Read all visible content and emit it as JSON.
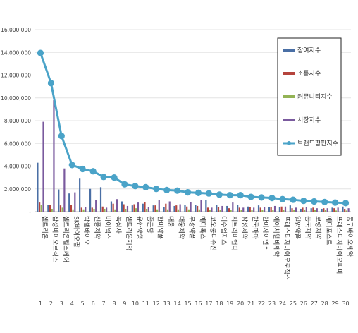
{
  "chart_data": {
    "type": "bar",
    "title": "",
    "xlabel": "",
    "ylabel": "",
    "ylim": [
      0,
      16000000
    ],
    "yticks": [
      0,
      2000000,
      4000000,
      6000000,
      8000000,
      10000000,
      12000000,
      14000000,
      16000000
    ],
    "ytick_labels": [
      "-",
      "2,000,000",
      "4,000,000",
      "6,000,000",
      "8,000,000",
      "10,000,000",
      "12,000,000",
      "14,000,000",
      "16,000,000"
    ],
    "grid": true,
    "legend_position": "right",
    "rank_labels": [
      "1",
      "2",
      "3",
      "4",
      "5",
      "6",
      "7",
      "8",
      "9",
      "10",
      "11",
      "12",
      "13",
      "14",
      "15",
      "16",
      "17",
      "18",
      "19",
      "20",
      "21",
      "22",
      "23",
      "24",
      "25",
      "26",
      "27",
      "28",
      "29",
      "30"
    ],
    "categories": [
      "셀트리온",
      "삼성바이오로직스",
      "셀트리온헬스케어",
      "SK바이오팜",
      "박셀바이오",
      "신풍제약",
      "바이넥스",
      "녹십자",
      "셀트리온제약",
      "유한양행",
      "종근당",
      "한미약품",
      "대웅",
      "대웅제약",
      "부광약품",
      "메디톡스",
      "코오롱티슈진",
      "이수앱지스",
      "지트리비앤티",
      "삼성제약",
      "한국파마",
      "한미사이언스",
      "에이치엘비제약",
      "프레스티지바이오로직스",
      "일양약품",
      "동국제약",
      "보령제약",
      "메디포스트",
      "프레스티지바이오파마",
      "동구바이오제약"
    ],
    "series": [
      {
        "name": "참여지수",
        "color": "#4a6fa5",
        "values": [
          4300000,
          620000,
          1950000,
          1600000,
          2900000,
          2000000,
          2150000,
          900000,
          900000,
          550000,
          700000,
          550000,
          400000,
          500000,
          600000,
          600000,
          1050000,
          600000,
          500000,
          600000,
          450000,
          550000,
          400000,
          400000,
          550000,
          250000,
          300000,
          250000,
          350000,
          450000
        ]
      },
      {
        "name": "소통지수",
        "color": "#b5443c",
        "values": [
          800000,
          600000,
          550000,
          600000,
          350000,
          350000,
          450000,
          700000,
          650000,
          650000,
          850000,
          550000,
          700000,
          550000,
          450000,
          500000,
          350000,
          400000,
          300000,
          350000,
          400000,
          350000,
          400000,
          450000,
          300000,
          350000,
          350000,
          300000,
          300000,
          250000
        ]
      },
      {
        "name": "커뮤니티지수",
        "color": "#93b355",
        "values": [
          600000,
          250000,
          350000,
          200000,
          200000,
          250000,
          250000,
          200000,
          250000,
          300000,
          250000,
          200000,
          200000,
          200000,
          200000,
          200000,
          150000,
          150000,
          150000,
          150000,
          150000,
          150000,
          150000,
          150000,
          150000,
          150000,
          150000,
          150000,
          100000,
          100000
        ]
      },
      {
        "name": "시장지수",
        "color": "#7a5a9e",
        "values": [
          7900000,
          9800000,
          3800000,
          1700000,
          400000,
          1000000,
          350000,
          1100000,
          500000,
          800000,
          400000,
          1000000,
          900000,
          650000,
          850000,
          1000000,
          350000,
          500000,
          800000,
          350000,
          350000,
          400000,
          500000,
          450000,
          350000,
          400000,
          300000,
          300000,
          350000,
          300000
        ]
      },
      {
        "name": "브랜드평판지수",
        "color": "#4aa3c8",
        "type": "line",
        "values": [
          13950000,
          11300000,
          6650000,
          4100000,
          3750000,
          3550000,
          3050000,
          3000000,
          2400000,
          2250000,
          2150000,
          2000000,
          1900000,
          1850000,
          1700000,
          1650000,
          1600000,
          1500000,
          1450000,
          1450000,
          1300000,
          1250000,
          1200000,
          1100000,
          1050000,
          950000,
          900000,
          850000,
          800000,
          750000
        ]
      }
    ]
  }
}
